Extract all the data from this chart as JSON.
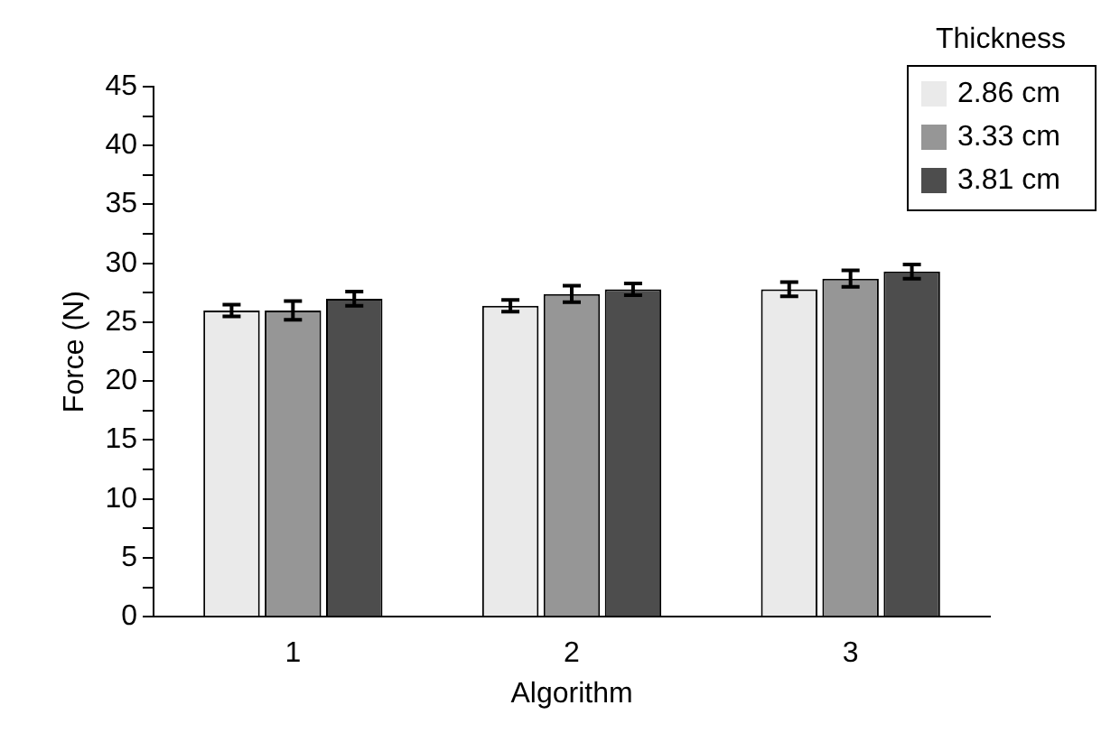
{
  "chart_data": {
    "type": "bar",
    "xlabel": "Algorithm",
    "ylabel": "Force (N)",
    "legend_title": "Thickness",
    "legend": "top right",
    "categories": [
      "1",
      "2",
      "3"
    ],
    "series": [
      {
        "name": "2.86 cm",
        "color": "#eaeaea",
        "values": [
          26.0,
          26.4,
          27.8
        ],
        "errors": [
          0.5,
          0.5,
          0.6
        ]
      },
      {
        "name": "3.33 cm",
        "color": "#969696",
        "values": [
          26.0,
          27.4,
          28.7
        ],
        "errors": [
          0.8,
          0.7,
          0.7
        ]
      },
      {
        "name": "3.81 cm",
        "color": "#4d4d4d",
        "values": [
          27.0,
          27.8,
          29.3
        ],
        "errors": [
          0.6,
          0.5,
          0.6
        ]
      }
    ],
    "ylim": [
      0,
      45
    ],
    "yticks": [
      0,
      {
        "value": 2.5,
        "label": null
      },
      5,
      {
        "value": 7.5,
        "label": null
      },
      10,
      {
        "value": 12.5,
        "label": null
      },
      15,
      {
        "value": 17.5,
        "label": null
      },
      20,
      {
        "value": 22.5,
        "label": null
      },
      25,
      {
        "value": 27.5,
        "label": null
      },
      30,
      {
        "value": 32.5,
        "label": null
      },
      35,
      {
        "value": 37.5,
        "label": null
      },
      40,
      {
        "value": 42.5,
        "label": null
      },
      45
    ],
    "grid": false
  }
}
